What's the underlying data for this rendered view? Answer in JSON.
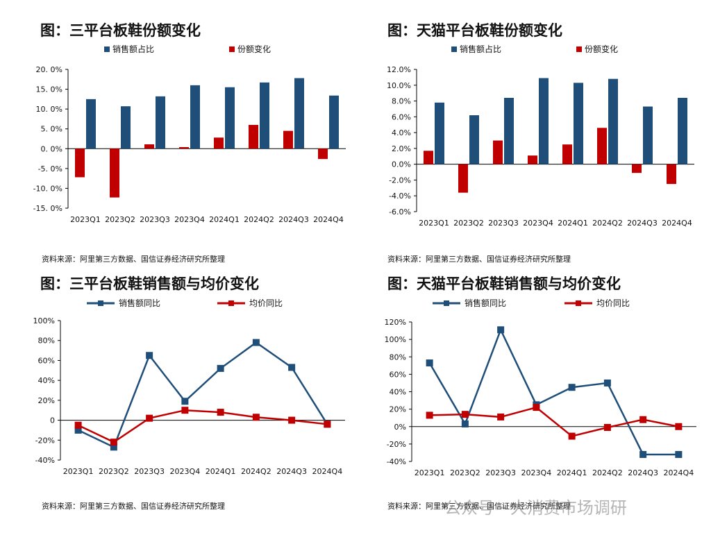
{
  "colors": {
    "navy": "#1f4e79",
    "red": "#c00000",
    "axis": "#000000"
  },
  "chart_data": [
    {
      "id": "c1",
      "type": "bar",
      "title": "图：三平台板鞋份额变化",
      "source": "资料来源：阿里第三方数据、国信证券经济研究所整理",
      "categories": [
        "2023Q1",
        "2023Q2",
        "2023Q3",
        "2023Q4",
        "2024Q1",
        "2024Q2",
        "2024Q3",
        "2024Q4"
      ],
      "series": [
        {
          "name": "销售额占比",
          "color": "#1f4e79",
          "values": [
            12.5,
            10.7,
            13.2,
            16.0,
            15.5,
            16.7,
            17.8,
            13.4
          ]
        },
        {
          "name": "份额变化",
          "color": "#c00000",
          "values": [
            -7.2,
            -12.3,
            1.1,
            0.4,
            2.8,
            6.0,
            4.5,
            -2.6
          ]
        }
      ],
      "ylim": [
        -15,
        20
      ],
      "yticks": [
        20,
        15,
        10,
        5,
        0,
        -5,
        -10,
        -15
      ],
      "ytick_labels": [
        "20. 0%",
        "15. 0%",
        "10. 0%",
        "5. 0%",
        "0. 0%",
        "-5. 0%",
        "-10. 0%",
        "-15. 0%"
      ],
      "legend": "top"
    },
    {
      "id": "c2",
      "type": "bar",
      "title": "图：天猫平台板鞋份额变化",
      "source": "资料来源：阿里第三方数据、国信证券经济研究所整理",
      "categories": [
        "2023Q1",
        "2023Q2",
        "2023Q3",
        "2023Q4",
        "2024Q1",
        "2024Q2",
        "2024Q3",
        "2024Q4"
      ],
      "series": [
        {
          "name": "销售额占比",
          "color": "#1f4e79",
          "values": [
            7.8,
            6.2,
            8.4,
            10.9,
            10.3,
            10.8,
            7.3,
            8.4
          ]
        },
        {
          "name": "份额变化",
          "color": "#c00000",
          "values": [
            1.7,
            -3.6,
            3.0,
            1.1,
            2.5,
            4.6,
            -1.1,
            -2.5
          ]
        }
      ],
      "ylim": [
        -6,
        12
      ],
      "yticks": [
        12,
        10,
        8,
        6,
        4,
        2,
        0,
        -2,
        -4,
        -6
      ],
      "ytick_labels": [
        "12.0%",
        "10.0%",
        "8.0%",
        "6.0%",
        "4.0%",
        "2.0%",
        "0.0%",
        "-2.0%",
        "-4.0%",
        "-6.0%"
      ],
      "legend": "top"
    },
    {
      "id": "c3",
      "type": "line",
      "title": "图：三平台板鞋销售额与均价变化",
      "source": "资料来源：阿里第三方数据、国信证券经济研究所整理",
      "categories": [
        "2023Q1",
        "2023Q2",
        "2023Q3",
        "2023Q4",
        "2024Q1",
        "2024Q2",
        "2024Q3",
        "2024Q4"
      ],
      "series": [
        {
          "name": "销售额同比",
          "color": "#1f4e79",
          "values": [
            -10,
            -27,
            65,
            19,
            52,
            78,
            53,
            -4
          ]
        },
        {
          "name": "均价同比",
          "color": "#c00000",
          "values": [
            -5,
            -22,
            2,
            10,
            8,
            3,
            0,
            -4
          ]
        }
      ],
      "ylim": [
        -40,
        100
      ],
      "yticks": [
        100,
        80,
        60,
        40,
        20,
        0,
        -20,
        -40
      ],
      "ytick_labels": [
        "100%",
        "80%",
        "60%",
        "40%",
        "20%",
        "0",
        "-20%",
        "-40%"
      ],
      "legend": "top"
    },
    {
      "id": "c4",
      "type": "line",
      "title": "图：天猫平台板鞋销售额与均价变化",
      "source": "资料来源：阿里第三方数据、国信证券经济研究所整理",
      "categories": [
        "2023Q1",
        "2023Q2",
        "2023Q3",
        "2023Q4",
        "2024Q1",
        "2024Q2",
        "2024Q3",
        "2024Q4"
      ],
      "series": [
        {
          "name": "销售额同比",
          "color": "#1f4e79",
          "values": [
            73,
            3,
            111,
            25,
            45,
            50,
            -32,
            -32
          ]
        },
        {
          "name": "均价同比",
          "color": "#c00000",
          "values": [
            13,
            14,
            11,
            22,
            -11,
            -1,
            8,
            0
          ]
        }
      ],
      "ylim": [
        -40,
        120
      ],
      "yticks": [
        120,
        100,
        80,
        60,
        40,
        20,
        0,
        -20,
        -40
      ],
      "ytick_labels": [
        "120%",
        "100%",
        "80%",
        "60%",
        "40%",
        "20%",
        "0%",
        "-20%",
        "-40%"
      ],
      "legend": "top"
    }
  ],
  "watermark": "公众号 · 大消费市场调研"
}
